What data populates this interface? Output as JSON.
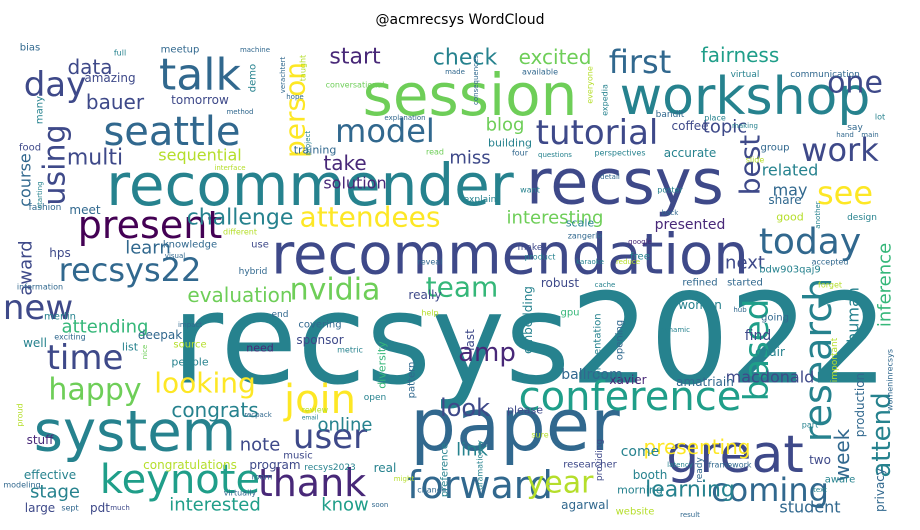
{
  "chart_data": {
    "type": "wordcloud",
    "title": "@acmrecsys WordCloud",
    "words": [
      "recsys2022",
      "recommendation",
      "recommender",
      "recsys",
      "session",
      "workshop",
      "paper",
      "great",
      "system",
      "talk",
      "seattle",
      "day",
      "present",
      "recsys22",
      "new",
      "time",
      "happy",
      "keynote",
      "thank",
      "forward",
      "user",
      "join",
      "looking",
      "congrats",
      "conference",
      "amp",
      "look",
      "nvidia",
      "team",
      "evaluation",
      "attendees",
      "model",
      "tutorial",
      "first",
      "one",
      "work",
      "see",
      "today",
      "research",
      "based",
      "coming",
      "year",
      "person",
      "best",
      "using",
      "attend",
      "week",
      "start",
      "check",
      "excited",
      "fairness",
      "bauer",
      "data",
      "take",
      "solution",
      "blog",
      "miss",
      "topic",
      "multi",
      "sequential",
      "challenge",
      "interesting",
      "presented",
      "related",
      "may",
      "next",
      "learn",
      "award",
      "course",
      "hps",
      "attending",
      "presenting",
      "learning",
      "online",
      "note",
      "interested",
      "know",
      "stage",
      "link",
      "human",
      "inference",
      "macdonald",
      "amatriain",
      "xavier",
      "ballroom",
      "congratulations",
      "program",
      "effective",
      "stuff",
      "pdt",
      "large",
      "agarwal",
      "student",
      "website",
      "two",
      "privacy",
      "production",
      "find",
      "chair",
      "embedding",
      "gpu",
      "women",
      "deepak",
      "merlin",
      "really",
      "refined",
      "started",
      "bdw903qaj9",
      "robust",
      "hybrid",
      "sponsor",
      "covering",
      "end",
      "need",
      "source",
      "list",
      "well",
      "people",
      "last",
      "open",
      "please",
      "come",
      "booth",
      "morning",
      "researcher",
      "real",
      "music",
      "recsys2023",
      "meet",
      "knowledge",
      "use",
      "explain",
      "make",
      "scale",
      "product",
      "free",
      "building",
      "accurate",
      "share",
      "good",
      "design",
      "group",
      "coffee",
      "tomorrow",
      "amazing",
      "meetup",
      "demo",
      "training",
      "food",
      "fashion",
      "many",
      "bias",
      "opening",
      "presentation",
      "providing",
      "ready",
      "framework",
      "latency",
      "aware",
      "virtually",
      "modeling",
      "machine",
      "full",
      "conversational",
      "explanation",
      "available",
      "everyone",
      "virtual",
      "communication",
      "bandit",
      "place",
      "making",
      "lot",
      "say",
      "slide",
      "perspectives",
      "questions",
      "four",
      "read",
      "want",
      "detail",
      "poster",
      "back",
      "zangerle",
      "google",
      "hope",
      "method",
      "project",
      "interface",
      "starting",
      "visual",
      "different",
      "information",
      "exciting",
      "nice",
      "impact",
      "metric",
      "review",
      "email",
      "room",
      "change",
      "soon",
      "sept",
      "much",
      "result",
      "text",
      "part",
      "important",
      "going",
      "forget",
      "accepted",
      "womeninrecsys",
      "sure",
      "diversity",
      "pattern",
      "preference",
      "dramatically",
      "reveal",
      "cache",
      "karaoke",
      "reduce",
      "help",
      "dynamic",
      "hub",
      "main",
      "hand",
      "another",
      "expedia",
      "consequences",
      "made",
      "verachtert",
      "taught",
      "might",
      "recpack",
      "proud"
    ]
  }
}
